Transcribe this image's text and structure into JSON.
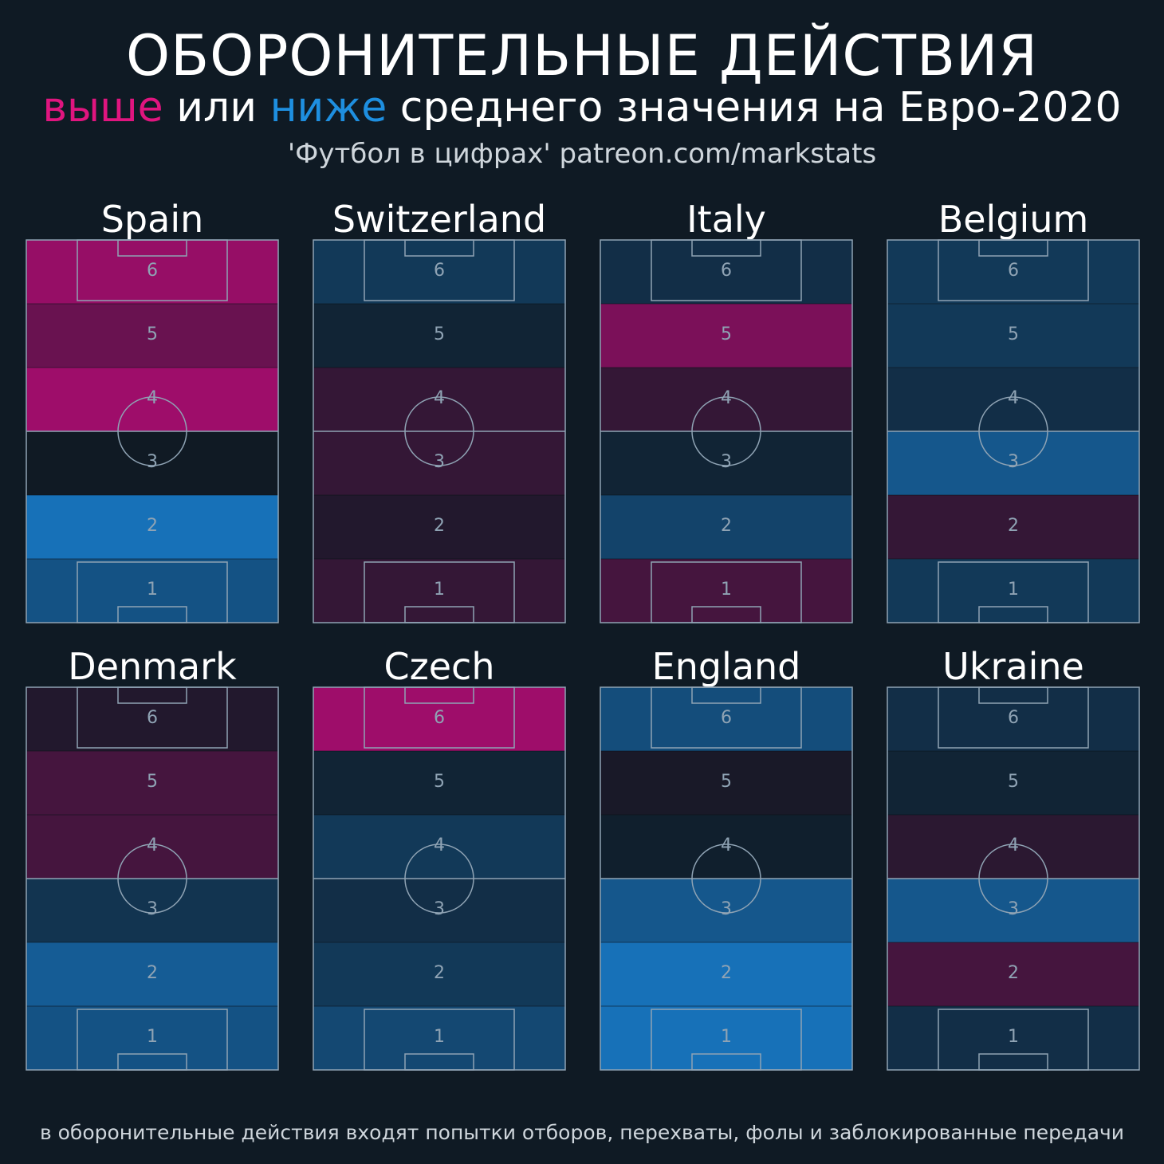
{
  "header": {
    "title": "ОБОРОНИТЕЛЬНЫЕ ДЕЙСТВИЯ",
    "subtitle_above": "выше",
    "subtitle_or": "или",
    "subtitle_below": "ниже",
    "subtitle_rest": "среднего значения на Евро-2020",
    "credit": "'Футбол в цифрах' patreon.com/markstats"
  },
  "footnote": "в оборонительные действия входят попытки отборов, перехваты, фолы и заблокированные передачи",
  "colors": {
    "background": "#0f1a24",
    "above_average": "#e0157f",
    "below_average": "#1e8fe0",
    "pitch_lines": "#8fa3b4"
  },
  "chart_data": {
    "type": "heatmap",
    "zones": [
      6,
      5,
      4,
      3,
      2,
      1
    ],
    "scale": "value per zone = deviation from tournament average, -1 (much lower) .. +1 (much higher)",
    "teams": [
      {
        "name": "Spain",
        "zone_values": [
          0.75,
          0.5,
          0.8,
          0.0,
          -0.85,
          -0.55
        ]
      },
      {
        "name": "Switzerland",
        "zone_values": [
          -0.3,
          -0.1,
          0.2,
          0.2,
          0.1,
          0.2
        ]
      },
      {
        "name": "Italy",
        "zone_values": [
          -0.2,
          0.6,
          0.2,
          -0.1,
          -0.4,
          0.3
        ]
      },
      {
        "name": "Belgium",
        "zone_values": [
          -0.3,
          -0.3,
          -0.2,
          -0.6,
          0.2,
          -0.3
        ]
      },
      {
        "name": "Denmark",
        "zone_values": [
          0.1,
          0.3,
          0.3,
          -0.25,
          -0.65,
          -0.55
        ]
      },
      {
        "name": "Czech",
        "zone_values": [
          0.8,
          -0.1,
          -0.3,
          -0.2,
          -0.3,
          -0.45
        ]
      },
      {
        "name": "England",
        "zone_values": [
          -0.5,
          0.05,
          -0.05,
          -0.6,
          -0.85,
          -0.85
        ]
      },
      {
        "name": "Ukraine",
        "zone_values": [
          -0.2,
          -0.1,
          0.15,
          -0.6,
          0.3,
          -0.2
        ]
      }
    ]
  }
}
